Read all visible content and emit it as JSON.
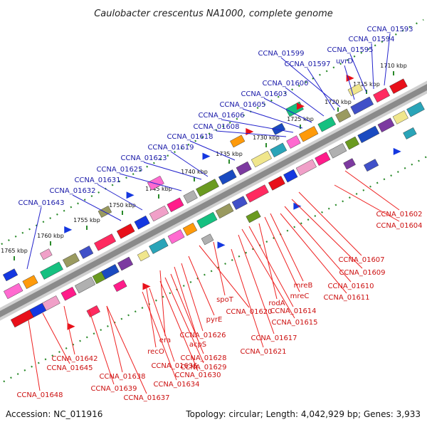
{
  "title": "Caulobacter crescentus NA1000, complete genome",
  "accession": "Accession: NC_011916",
  "topology": "Topology: circular; Length: 4,042,929 bp; Genes: 3,933",
  "colors": {
    "top_labels": "#1a1aa8",
    "bottom_labels": "#cc1111",
    "ruler_dots": "#2a8a2a",
    "backbone": "#8a8a8a"
  },
  "kbp_marks": [
    "1710 kbp",
    "1715 kbp",
    "1720 kbp",
    "1725 kbp",
    "1730 kbp",
    "1735 kbp",
    "1740 kbp",
    "1745 kbp",
    "1750 kbp",
    "1755 kbp",
    "1760 kbp",
    "1765 kbp"
  ],
  "top_genes": [
    "CCNA_01593",
    "CCNA_01594",
    "CCNA_01595",
    "uvrD",
    "CCNA_01599",
    "CCNA_01597",
    "CCNA_01600",
    "CCNA_01603",
    "CCNA_01605",
    "CCNA_01606",
    "CCNA_01608",
    "CCNA_01618",
    "CCNA_01619",
    "CCNA_01623",
    "CCNA_01625",
    "CCNA_01631",
    "CCNA_01632",
    "CCNA_01643"
  ],
  "bottom_genes": [
    "CCNA_01602",
    "CCNA_01604",
    "CCNA_01607",
    "CCNA_01609",
    "CCNA_01610",
    "CCNA_01611",
    "mreB",
    "mreC",
    "rodA",
    "CCNA_01614",
    "CCNA_01615",
    "spoT",
    "CCNA_01620",
    "CCNA_01617",
    "CCNA_01621",
    "pyrE",
    "CCNA_01626",
    "acpS",
    "era",
    "CCNA_01628",
    "CCNA_01629",
    "CCNA_01630",
    "recO",
    "CCNA_01636",
    "CCNA_01634",
    "CCNA_01642",
    "CCNA_01645",
    "CCNA_01638",
    "CCNA_01639",
    "CCNA_01637",
    "CCNA_01648"
  ]
}
